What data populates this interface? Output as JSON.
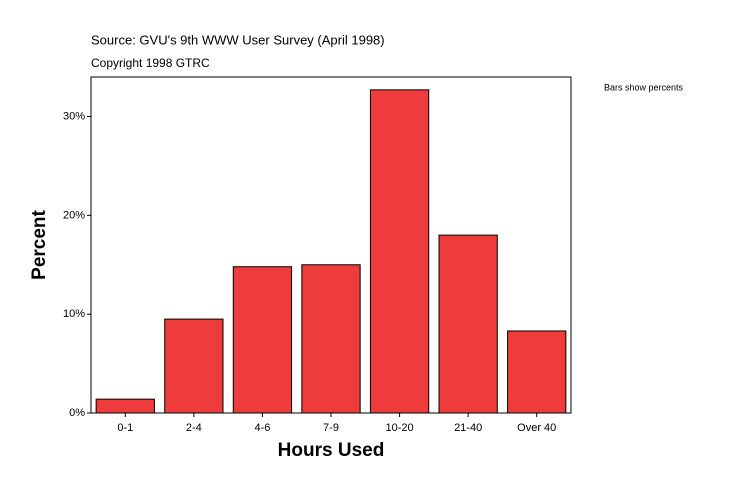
{
  "chart_data": {
    "type": "bar",
    "title": "Source: GVU's 9th WWW User Survey (April 1998)",
    "subtitle": "Copyright 1998 GTRC",
    "note": "Bars show percents",
    "x_label": "Hours Used",
    "y_label": "Percent",
    "categories": [
      "0-1",
      "2-4",
      "4-6",
      "7-9",
      "10-20",
      "21-40",
      "Over 40"
    ],
    "values": [
      1.4,
      9.5,
      14.8,
      15.0,
      32.7,
      18.0,
      8.3
    ],
    "color": "#ee3b3b",
    "ylim": [
      0,
      34
    ],
    "yticks": [
      {
        "value": 0,
        "label": "0%"
      },
      {
        "value": 10,
        "label": "10%"
      },
      {
        "value": 20,
        "label": "20%"
      },
      {
        "value": 30,
        "label": "30%"
      }
    ]
  }
}
